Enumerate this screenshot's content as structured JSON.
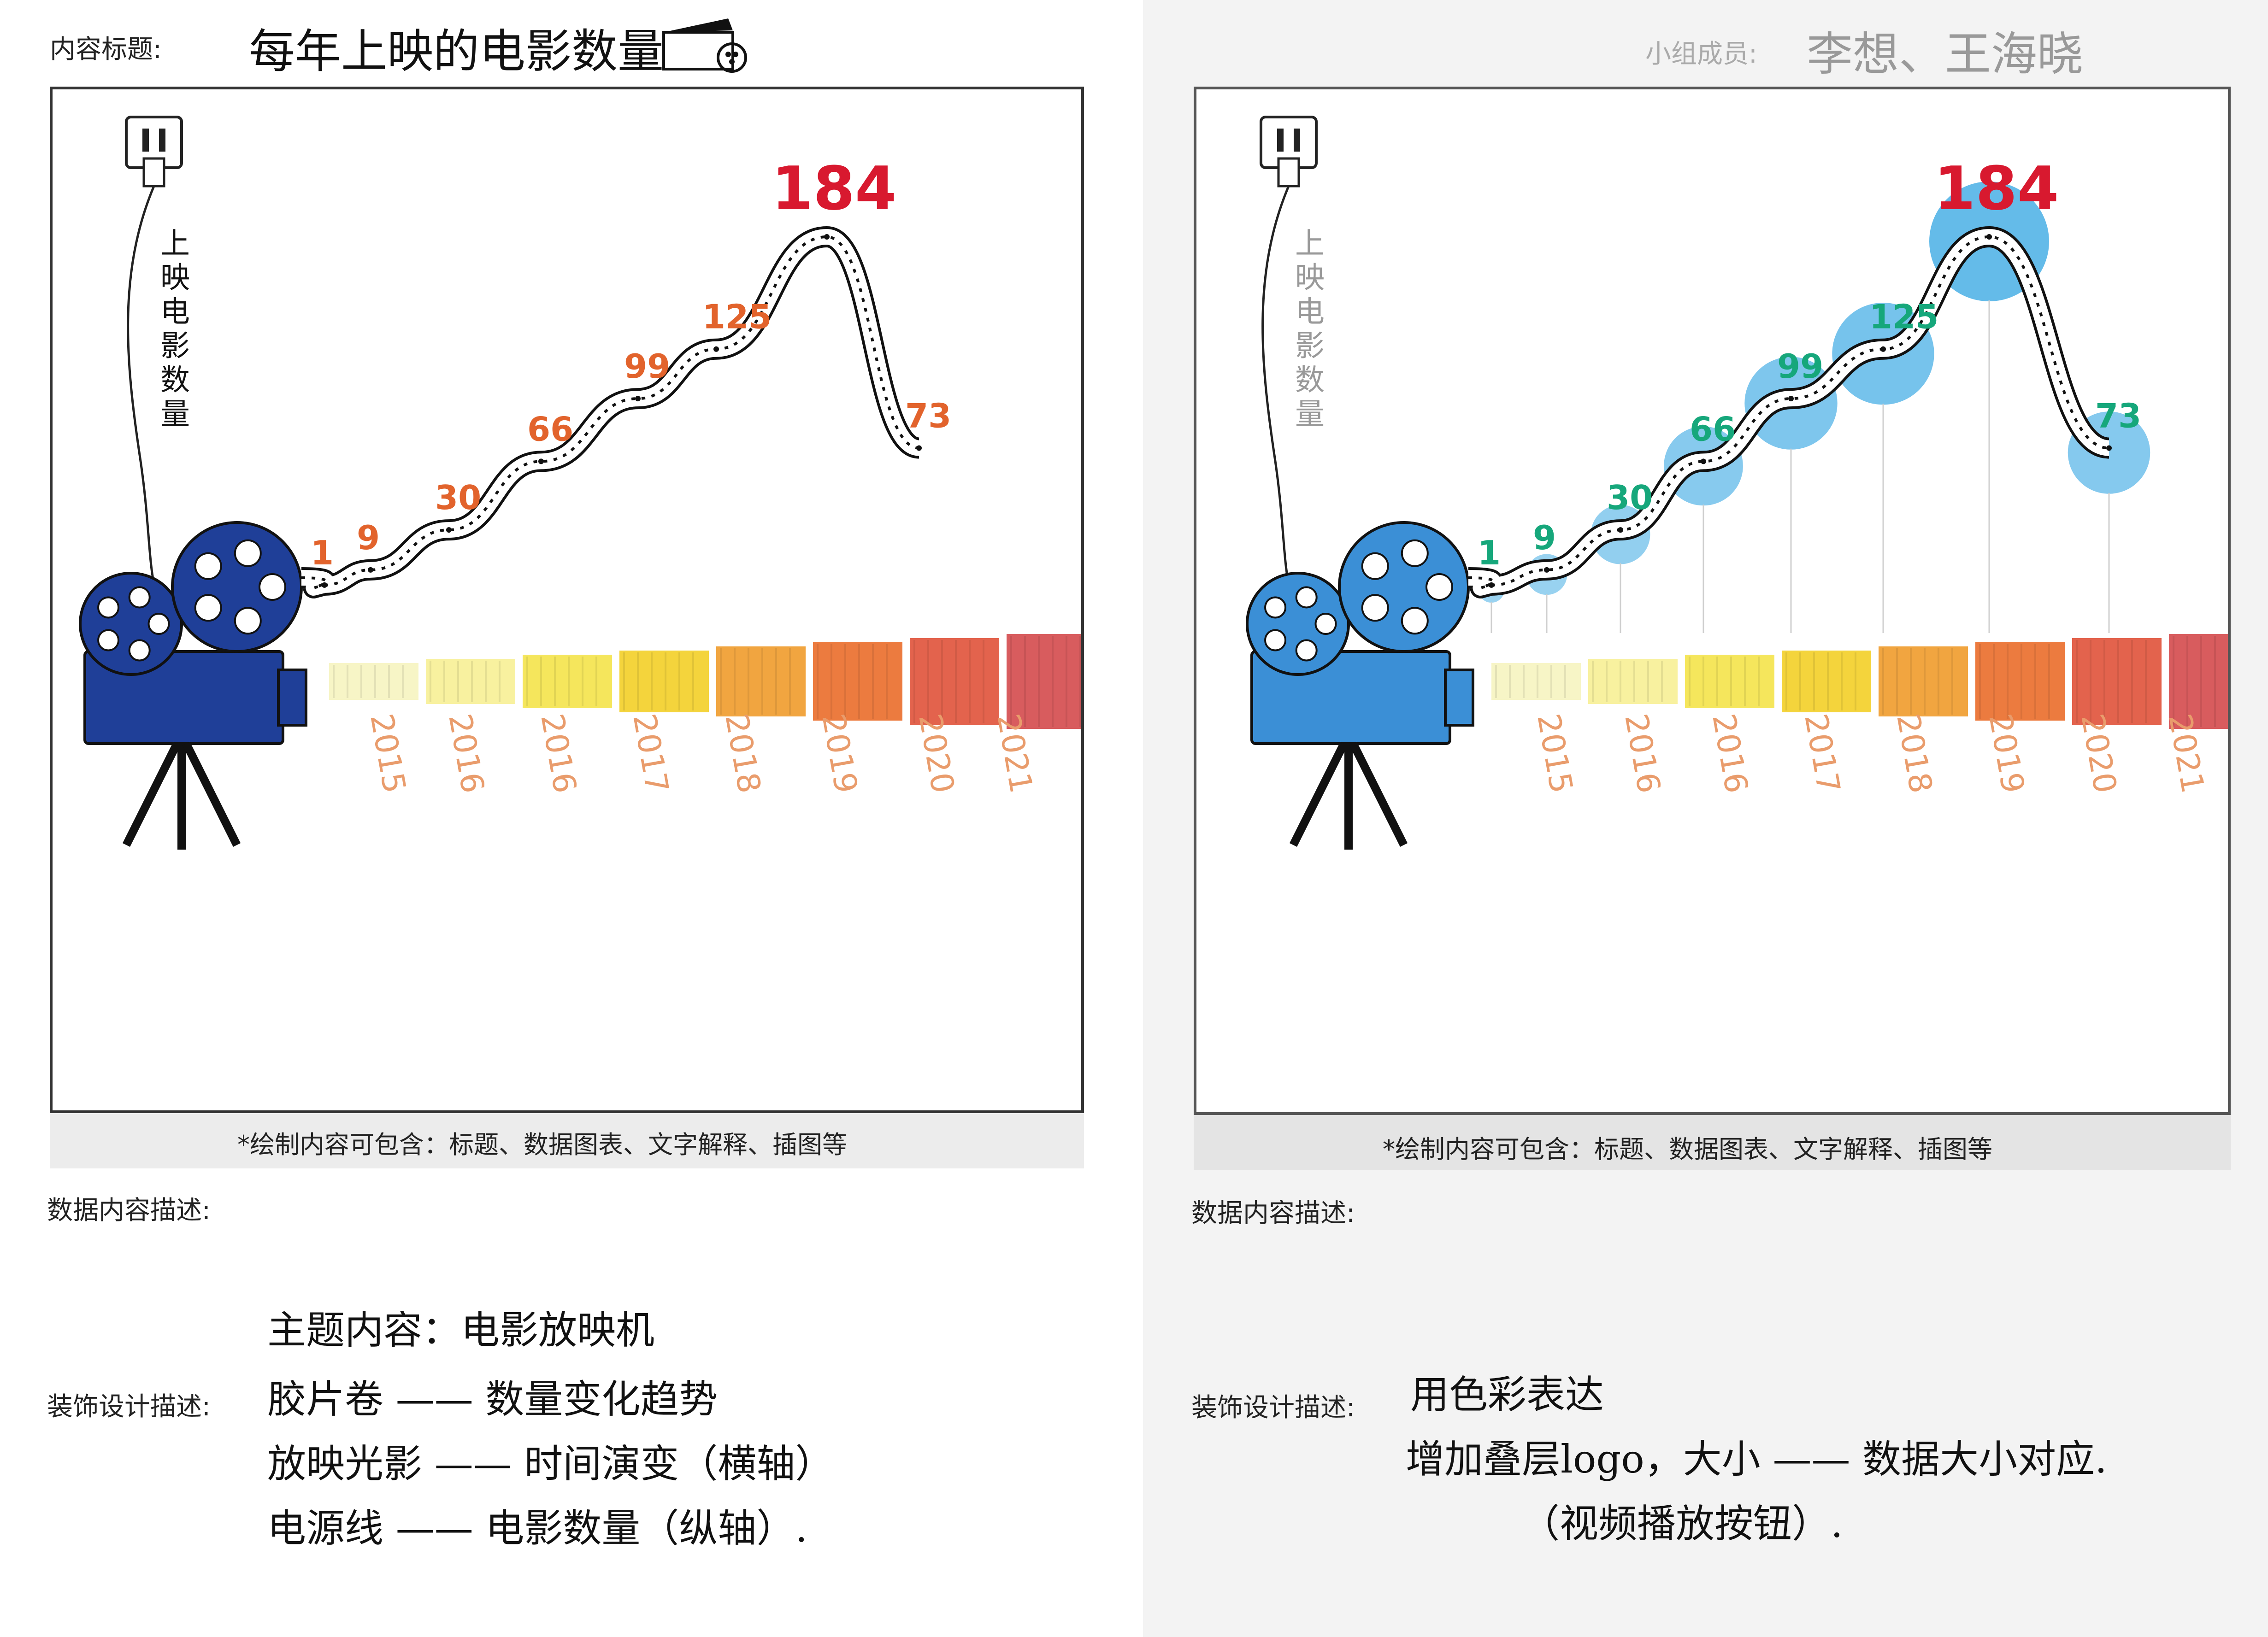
{
  "left": {
    "title_label": "内容标题:",
    "title_text": "每年上映的电影数量",
    "y_axis_text": "上映电影数量",
    "caption": "*绘制内容可包含：标题、数据图表、文字解释、插图等",
    "data_desc_label": "数据内容描述:",
    "deco_label": "装饰设计描述:",
    "notes": [
      "主题内容：电影放映机",
      "胶片卷 —— 数量变化趋势",
      "放映光影 —— 时间演变（横轴）",
      "电源线 —— 电影数量（纵轴）."
    ]
  },
  "right": {
    "members_label": "小组成员:",
    "members_text": "李想、王海晓",
    "y_axis_text": "上映电影数量",
    "caption": "*绘制内容可包含：标题、数据图表、文字解释、插图等",
    "data_desc_label": "数据内容描述:",
    "deco_label": "装饰设计描述:",
    "notes": [
      "用色彩表达",
      "增加叠层logo，大小 —— 数据大小对应.",
      "（视频播放按钮）."
    ]
  },
  "colors": {
    "projector_left": "#1f3f98",
    "projector_right": "#3b8fd6",
    "value_left": "#e2632c",
    "value_right": "#16a77b",
    "peak": "#d8192f",
    "year_label": "#e99c6c",
    "bubble": "#4ab0e6"
  },
  "chart_data": [
    {
      "type": "line",
      "x": [
        "2015",
        "2016",
        "2016",
        "2017",
        "2018",
        "2019",
        "2020",
        "2021"
      ],
      "values": [
        1,
        9,
        30,
        66,
        99,
        125,
        184,
        73
      ],
      "ylabel": "上映电影数量",
      "xlabel": ""
    },
    {
      "type": "line",
      "x": [
        "2015",
        "2016",
        "2016",
        "2017",
        "2018",
        "2019",
        "2020",
        "2021"
      ],
      "values": [
        1,
        9,
        30,
        66,
        99,
        125,
        184,
        73
      ],
      "ylabel": "上映电影数量",
      "xlabel": ""
    }
  ]
}
